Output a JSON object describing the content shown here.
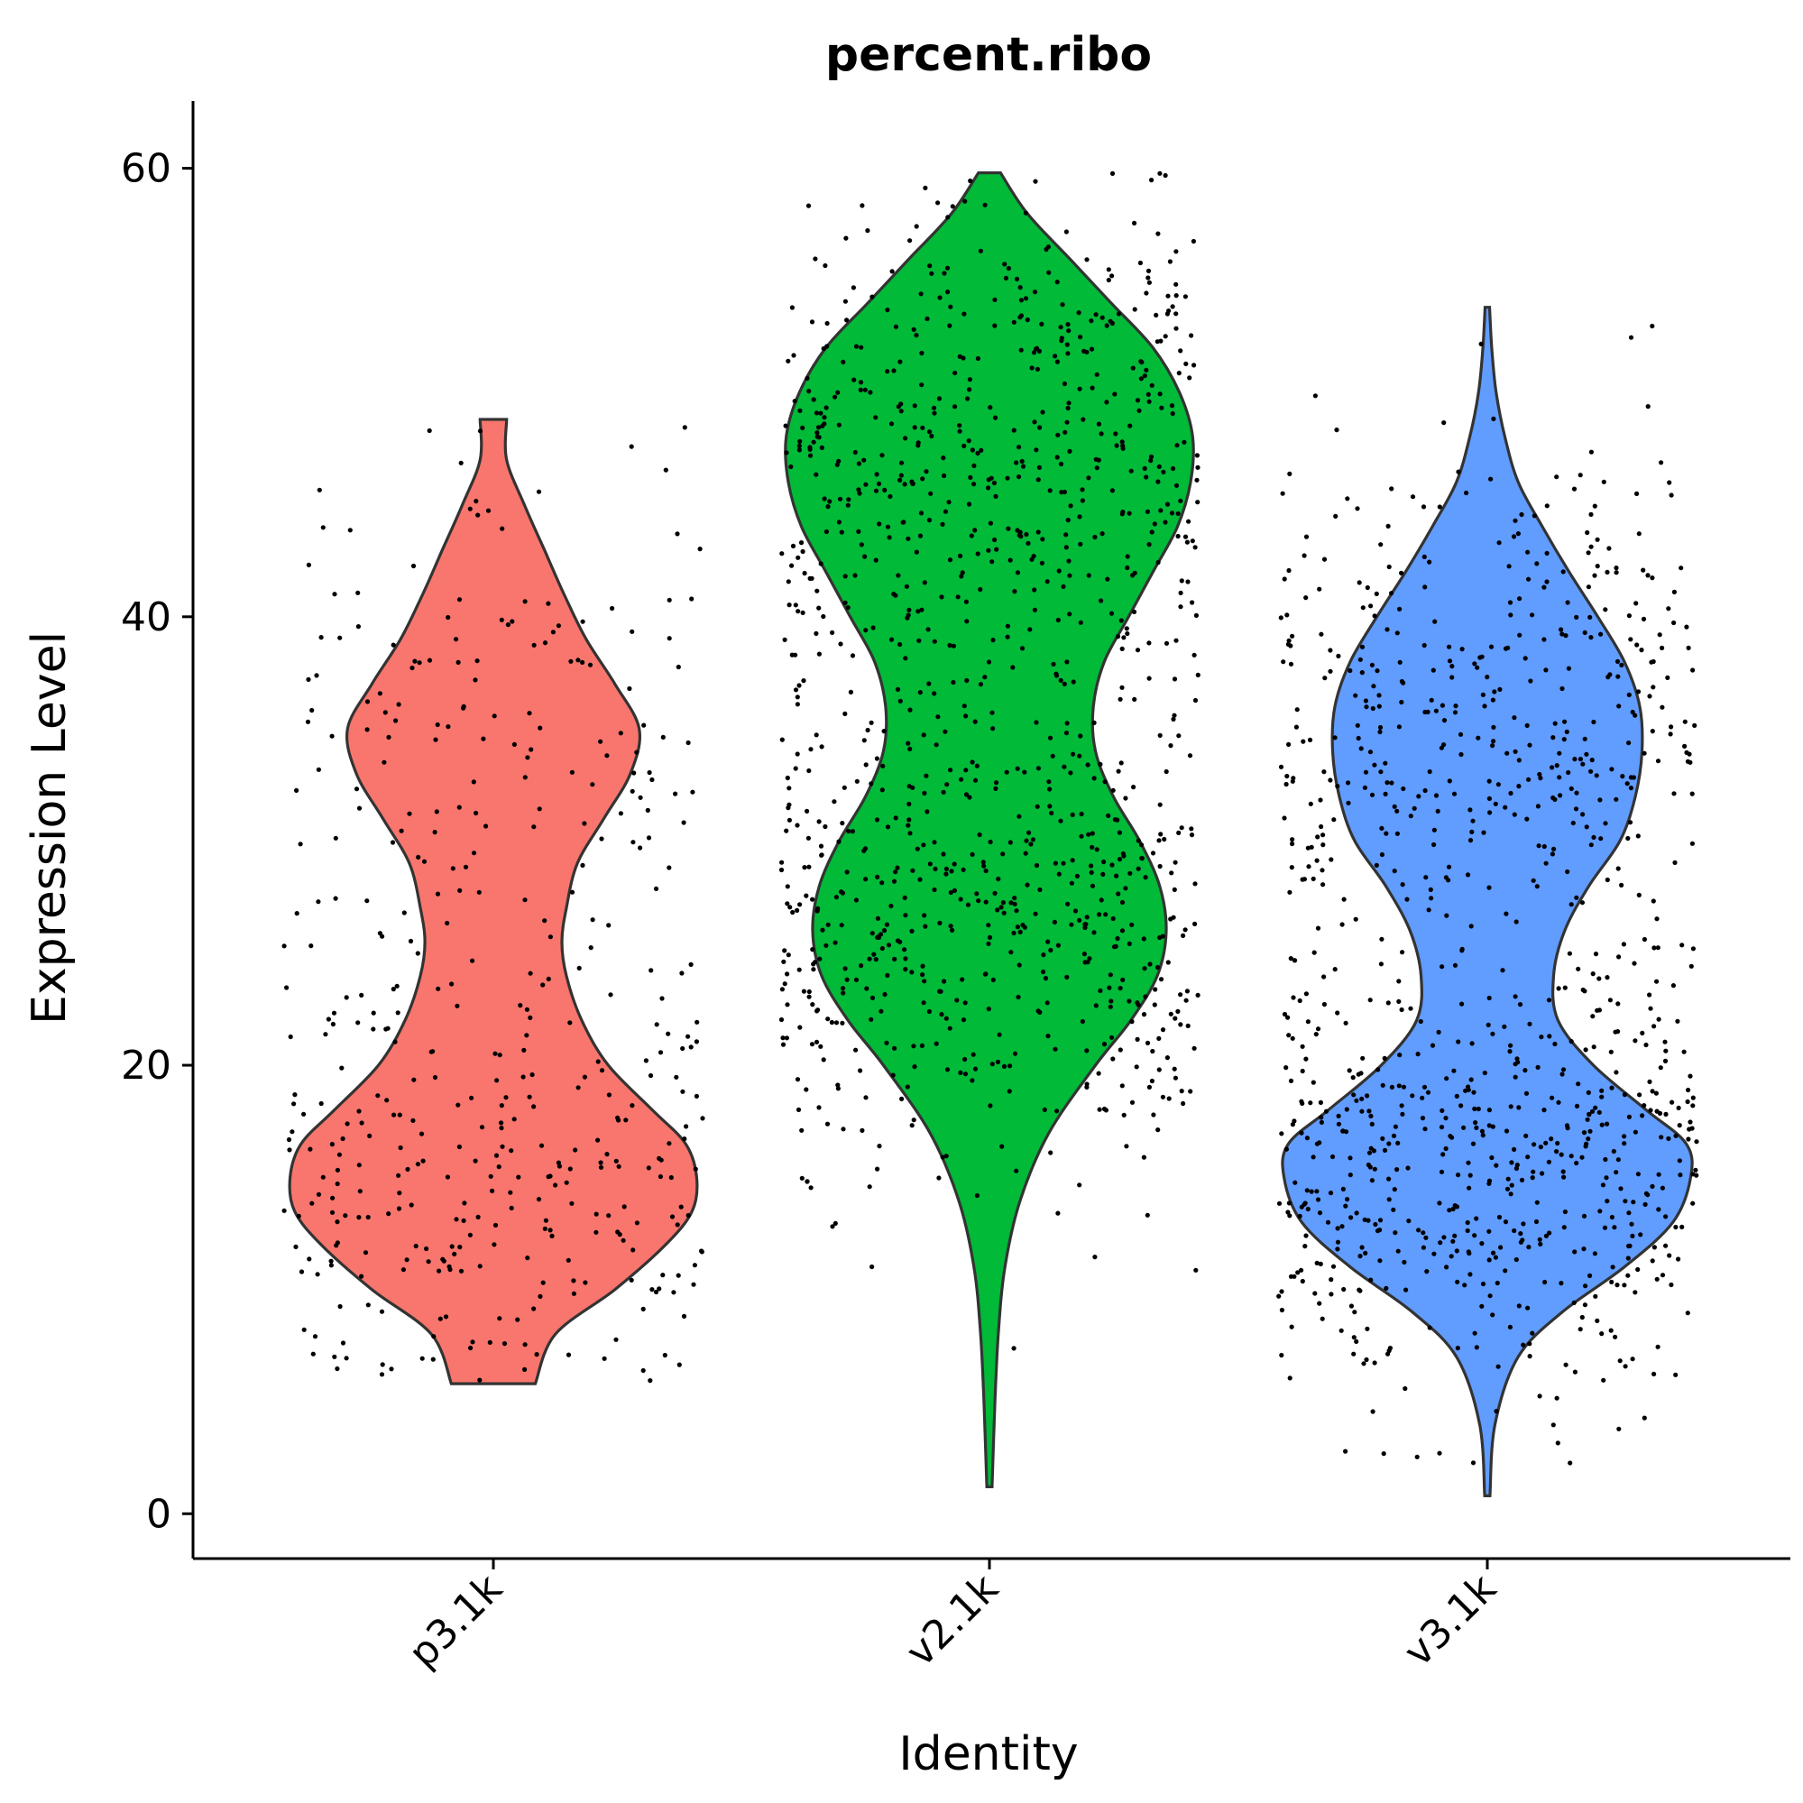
{
  "chart_data": {
    "type": "violin",
    "title": "percent.ribo",
    "xlabel": "Identity",
    "ylabel": "Expression Level",
    "ylim": [
      -2,
      63
    ],
    "yticks": [
      0,
      20,
      40,
      60
    ],
    "categories": [
      "p3.1k",
      "v2.1k",
      "v3.1k"
    ],
    "colors": [
      "#F8766D",
      "#00BA38",
      "#619CFF"
    ],
    "grid": false,
    "legend": "none",
    "series": [
      {
        "category": "p3.1k",
        "min": 5.8,
        "max": 48.8,
        "points_count": 420,
        "density": [
          [
            5.8,
            0.19
          ],
          [
            8,
            0.28
          ],
          [
            10,
            0.55
          ],
          [
            12,
            0.78
          ],
          [
            13.5,
            0.9
          ],
          [
            15,
            0.92
          ],
          [
            16.5,
            0.87
          ],
          [
            18,
            0.72
          ],
          [
            20,
            0.52
          ],
          [
            22,
            0.4
          ],
          [
            24,
            0.33
          ],
          [
            25.5,
            0.31
          ],
          [
            27,
            0.33
          ],
          [
            29,
            0.38
          ],
          [
            31,
            0.5
          ],
          [
            33,
            0.62
          ],
          [
            35,
            0.66
          ],
          [
            37,
            0.55
          ],
          [
            39,
            0.42
          ],
          [
            41,
            0.32
          ],
          [
            43,
            0.23
          ],
          [
            45,
            0.14
          ],
          [
            47,
            0.06
          ],
          [
            48.8,
            0.06
          ]
        ],
        "clusters": [
          [
            15.5,
            4.5,
            0.6
          ],
          [
            35,
            5,
            0.4
          ]
        ]
      },
      {
        "category": "v2.1k",
        "min": 1.2,
        "max": 59.8,
        "points_count": 1050,
        "density": [
          [
            1.2,
            0.012
          ],
          [
            5,
            0.025
          ],
          [
            8,
            0.04
          ],
          [
            11,
            0.07
          ],
          [
            14,
            0.14
          ],
          [
            17,
            0.27
          ],
          [
            20,
            0.48
          ],
          [
            22,
            0.64
          ],
          [
            24,
            0.76
          ],
          [
            26,
            0.8
          ],
          [
            28,
            0.77
          ],
          [
            30,
            0.68
          ],
          [
            32,
            0.56
          ],
          [
            34,
            0.48
          ],
          [
            36,
            0.47
          ],
          [
            38,
            0.52
          ],
          [
            40,
            0.63
          ],
          [
            42,
            0.74
          ],
          [
            44,
            0.85
          ],
          [
            46,
            0.91
          ],
          [
            48,
            0.92
          ],
          [
            50,
            0.86
          ],
          [
            52,
            0.74
          ],
          [
            54,
            0.55
          ],
          [
            56,
            0.36
          ],
          [
            58,
            0.17
          ],
          [
            59.8,
            0.05
          ]
        ],
        "clusters": [
          [
            26,
            5,
            0.5
          ],
          [
            47,
            5,
            0.5
          ]
        ]
      },
      {
        "category": "v3.1k",
        "min": 0.8,
        "max": 53.8,
        "points_count": 950,
        "density": [
          [
            0.8,
            0.012
          ],
          [
            4,
            0.035
          ],
          [
            7,
            0.14
          ],
          [
            9,
            0.34
          ],
          [
            11,
            0.62
          ],
          [
            13,
            0.84
          ],
          [
            15,
            0.92
          ],
          [
            16.5,
            0.9
          ],
          [
            18,
            0.72
          ],
          [
            20,
            0.48
          ],
          [
            22,
            0.32
          ],
          [
            24,
            0.3
          ],
          [
            26,
            0.35
          ],
          [
            28,
            0.46
          ],
          [
            30,
            0.6
          ],
          [
            32,
            0.67
          ],
          [
            34,
            0.7
          ],
          [
            36,
            0.69
          ],
          [
            38,
            0.62
          ],
          [
            40,
            0.5
          ],
          [
            42,
            0.37
          ],
          [
            44,
            0.25
          ],
          [
            46,
            0.14
          ],
          [
            48,
            0.08
          ],
          [
            50,
            0.04
          ],
          [
            52,
            0.02
          ],
          [
            53.8,
            0.01
          ]
        ],
        "clusters": [
          [
            15.5,
            4,
            0.55
          ],
          [
            35,
            5,
            0.45
          ]
        ]
      }
    ]
  }
}
